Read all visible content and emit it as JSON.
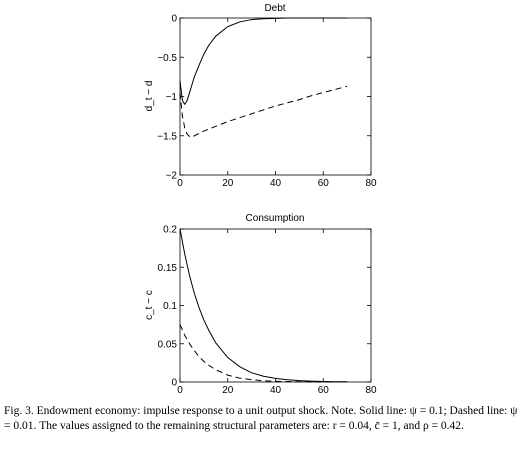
{
  "caption": "Fig. 3. Endowment economy: impulse response to a unit output shock. Note. Solid line: ψ = 0.1; Dashed line: ψ = 0.01. The values assigned to the remaining structural parameters are: r = 0.04, c̄ = 1, and ρ = 0.42.",
  "chart_data": [
    {
      "type": "line",
      "title": "Debt",
      "ylabel": "d_t − d",
      "xlim": [
        0,
        80
      ],
      "ylim": [
        -2,
        0
      ],
      "xticks": [
        "0",
        "20",
        "40",
        "60",
        "80"
      ],
      "yticks": [
        "−2",
        "−1.5",
        "−1",
        "−0.5",
        "0"
      ],
      "grid": false,
      "series": [
        {
          "style": "solid",
          "x": [
            0,
            1,
            2,
            3,
            4,
            5,
            6,
            8,
            10,
            12,
            15,
            20,
            25,
            30,
            35,
            40,
            45,
            50,
            55,
            60,
            65,
            70
          ],
          "values": [
            -0.8,
            -1.05,
            -1.1,
            -1.05,
            -0.95,
            -0.85,
            -0.75,
            -0.6,
            -0.46,
            -0.35,
            -0.23,
            -0.11,
            -0.05,
            -0.02,
            -0.01,
            -0.005,
            0,
            0,
            0,
            0,
            0,
            0
          ]
        },
        {
          "style": "dashed",
          "x": [
            0,
            1,
            2,
            3,
            4,
            5,
            6,
            8,
            10,
            15,
            20,
            25,
            30,
            35,
            40,
            45,
            50,
            55,
            60,
            65,
            70
          ],
          "values": [
            -0.95,
            -1.25,
            -1.4,
            -1.48,
            -1.51,
            -1.52,
            -1.5,
            -1.47,
            -1.44,
            -1.38,
            -1.32,
            -1.27,
            -1.22,
            -1.17,
            -1.12,
            -1.08,
            -1.04,
            -0.99,
            -0.95,
            -0.91,
            -0.87
          ]
        }
      ]
    },
    {
      "type": "line",
      "title": "Consumption",
      "ylabel": "c_t − c",
      "xlim": [
        0,
        80
      ],
      "ylim": [
        0,
        0.2
      ],
      "xticks": [
        "0",
        "20",
        "40",
        "60",
        "80"
      ],
      "yticks": [
        "0",
        "0.05",
        "0.1",
        "0.15",
        "0.2"
      ],
      "grid": false,
      "series": [
        {
          "style": "solid",
          "x": [
            0,
            2,
            4,
            6,
            8,
            10,
            12,
            15,
            20,
            25,
            30,
            35,
            40,
            45,
            50,
            55,
            60,
            65,
            70
          ],
          "values": [
            0.2,
            0.167,
            0.139,
            0.116,
            0.097,
            0.081,
            0.068,
            0.051,
            0.032,
            0.02,
            0.012,
            0.0075,
            0.0047,
            0.0029,
            0.0018,
            0.0011,
            0.0007,
            0.0004,
            0.0003
          ]
        },
        {
          "style": "dashed",
          "x": [
            0,
            2,
            4,
            6,
            8,
            10,
            12,
            15,
            20,
            25,
            30,
            35,
            40,
            45,
            50,
            55,
            60,
            65,
            70
          ],
          "values": [
            0.075,
            0.061,
            0.05,
            0.041,
            0.033,
            0.027,
            0.022,
            0.016,
            0.009,
            0.005,
            0.003,
            0.0016,
            0.0009,
            0.0005,
            0.0003,
            0.0002,
            0.0001,
            0,
            0
          ]
        }
      ]
    }
  ]
}
